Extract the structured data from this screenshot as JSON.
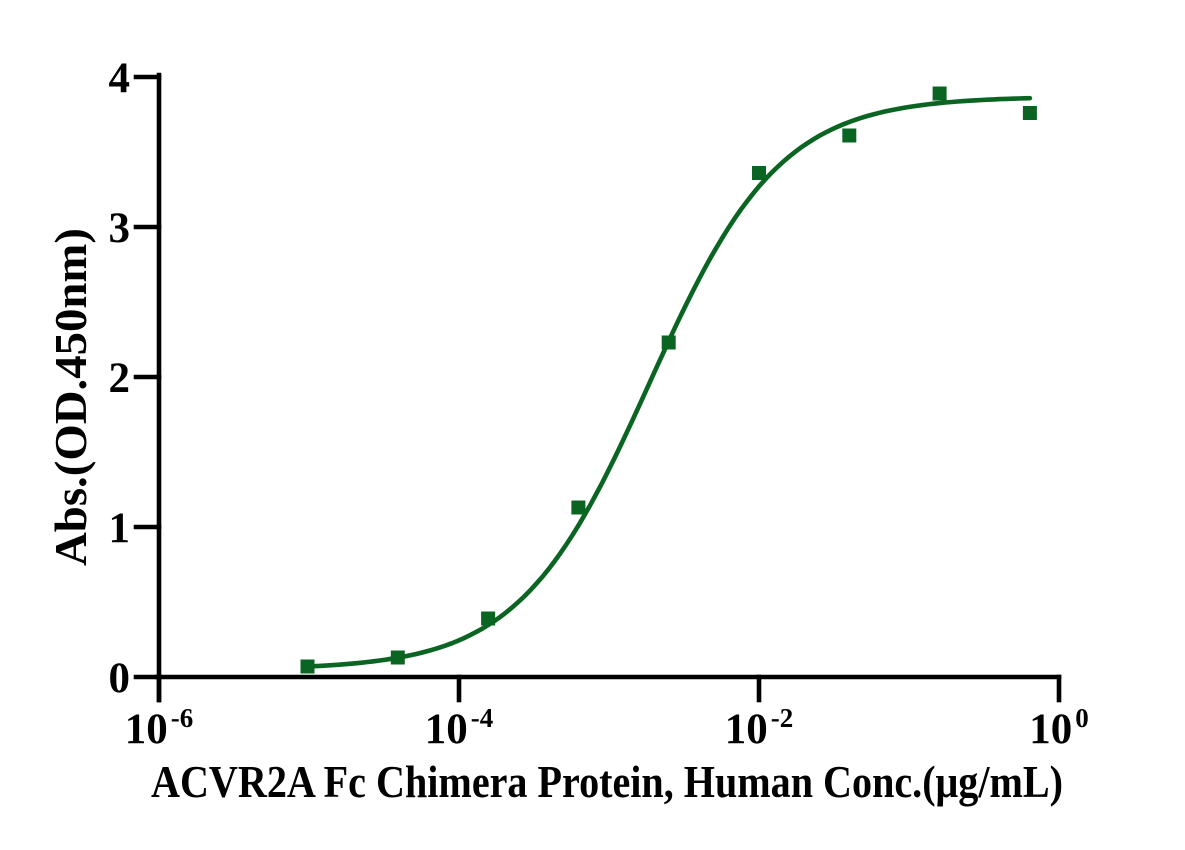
{
  "figure": {
    "background": "#ffffff"
  },
  "chart_data": {
    "type": "scatter",
    "title": "",
    "xlabel": "ACVR2A Fc Chimera Protein, Human Conc.(μg/mL)",
    "ylabel": "Abs.(OD.450nm)",
    "x_scale": "log10",
    "xlim_log10": [
      -6,
      0
    ],
    "ylim": [
      0,
      4
    ],
    "x_tick_exponents": [
      -6,
      -4,
      -2,
      0
    ],
    "x_tick_base": "10",
    "y_ticks": [
      0,
      1,
      2,
      3,
      4
    ],
    "grid": false,
    "legend": false,
    "axis_color": "#000000",
    "series": [
      {
        "name": "ACVR2A Fc Chimera Protein, Human",
        "color": "#0B6522",
        "marker": "square",
        "marker_size_px": 14,
        "points": [
          {
            "conc_ug_ml": 9.7656e-06,
            "abs": 0.07
          },
          {
            "conc_ug_ml": 3.90625e-05,
            "abs": 0.13
          },
          {
            "conc_ug_ml": 0.00015625,
            "abs": 0.39
          },
          {
            "conc_ug_ml": 0.000625,
            "abs": 1.13
          },
          {
            "conc_ug_ml": 0.0025,
            "abs": 2.23
          },
          {
            "conc_ug_ml": 0.01,
            "abs": 3.36
          },
          {
            "conc_ug_ml": 0.04,
            "abs": 3.61
          },
          {
            "conc_ug_ml": 0.16,
            "abs": 3.89
          },
          {
            "conc_ug_ml": 0.64,
            "abs": 3.76
          }
        ],
        "fit_4pl": {
          "bottom": 0.05,
          "top": 3.87,
          "log10_ec50": -2.73,
          "hill": 1.0
        }
      }
    ]
  }
}
